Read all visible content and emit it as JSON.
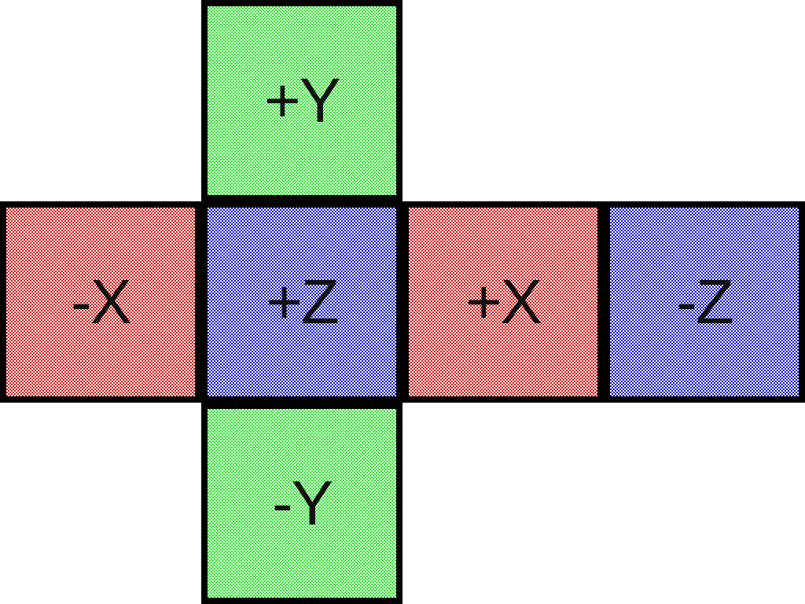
{
  "faces": {
    "pos_y": {
      "label": "+Y",
      "color": "#22e622"
    },
    "neg_x": {
      "label": "-X",
      "color": "#e01010"
    },
    "pos_z": {
      "label": "+Z",
      "color": "#1010d8"
    },
    "pos_x": {
      "label": "+X",
      "color": "#e01010"
    },
    "neg_z": {
      "label": "-Z",
      "color": "#1010d8"
    },
    "neg_y": {
      "label": "-Y",
      "color": "#22e622"
    }
  },
  "pattern": {
    "type": "checkerboard",
    "secondary_color": "#ffffff"
  },
  "border_color": "#000000"
}
